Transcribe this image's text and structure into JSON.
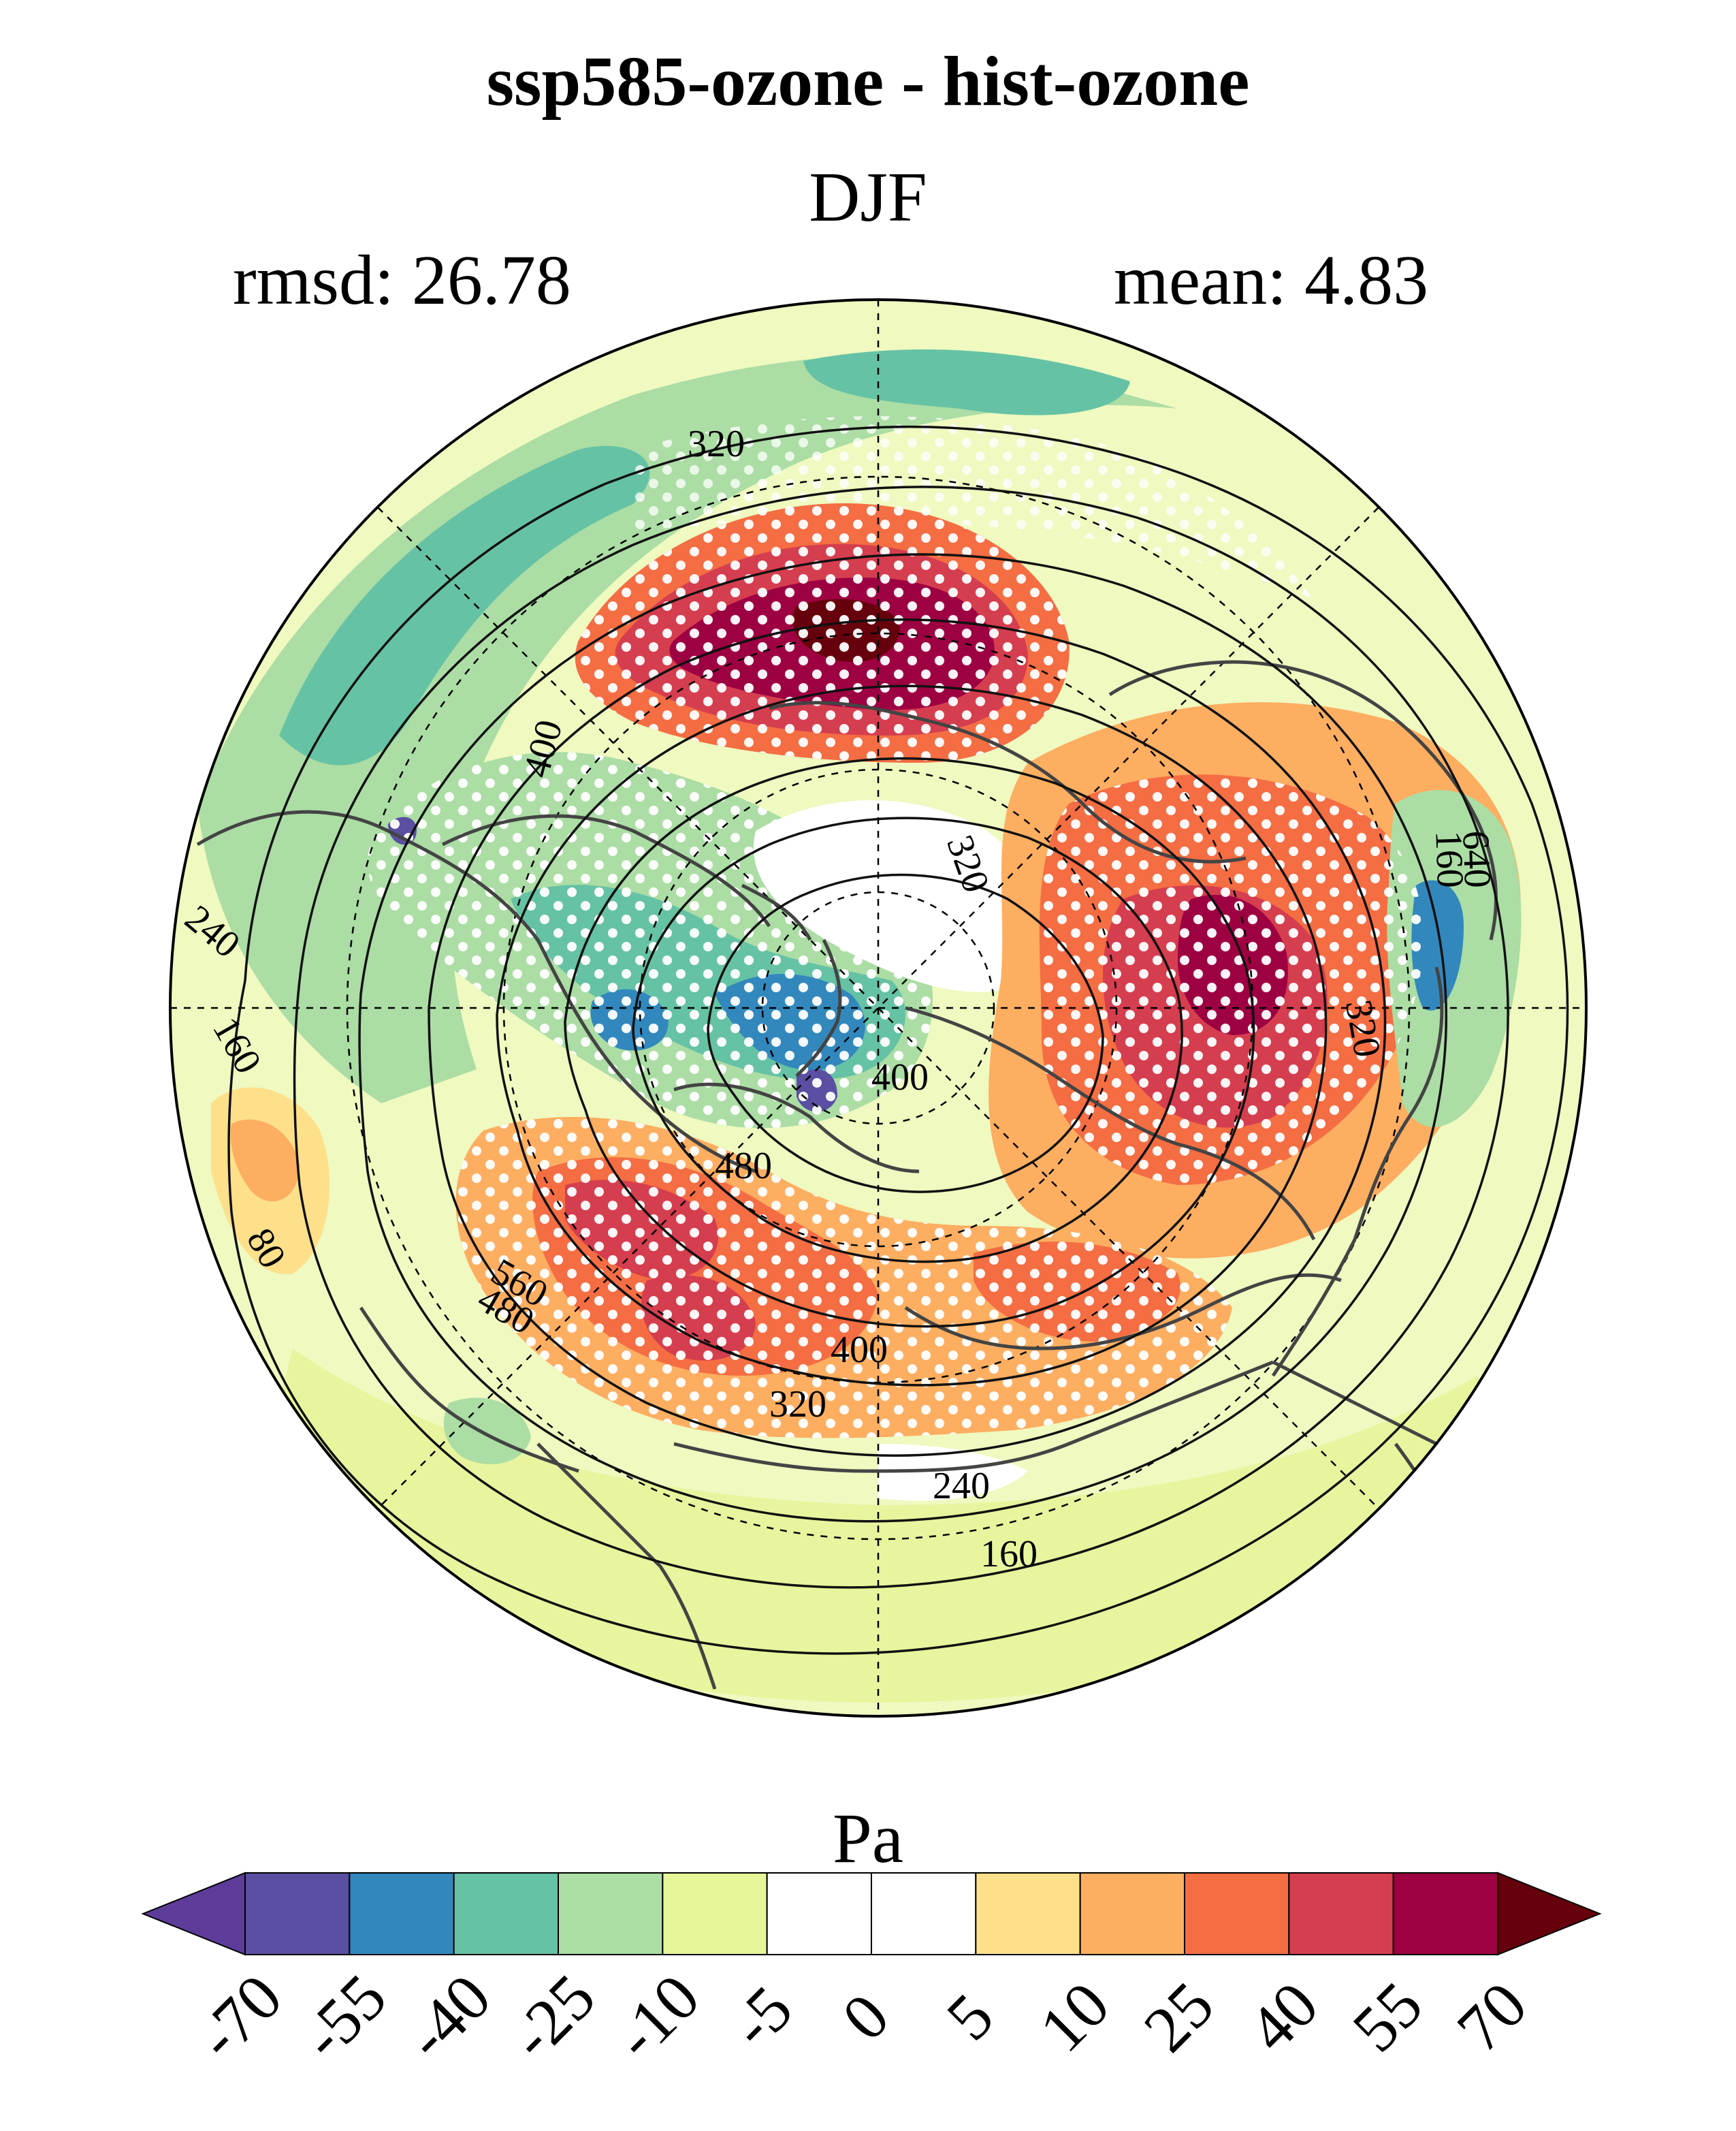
{
  "title": "ssp585-ozone - hist-ozone",
  "season": "DJF",
  "stats": {
    "rmsd": "rmsd: 26.78",
    "mean": "mean: 4.83"
  },
  "colorbar": {
    "unit": "Pa",
    "ticks": [
      "-70",
      "-55",
      "-40",
      "-25",
      "-10",
      "-5",
      "0",
      "5",
      "10",
      "25",
      "40",
      "55",
      "70"
    ],
    "colors": [
      "#5e3c99",
      "#5a4fa2",
      "#3288bd",
      "#66c2a5",
      "#abdda4",
      "#e6f598",
      "#ffffff",
      "#ffffff",
      "#fee08b",
      "#fdae61",
      "#f46d43",
      "#d53e4f",
      "#9e0142",
      "#67000d"
    ]
  },
  "contour_labels": [
    "320",
    "400",
    "320",
    "240",
    "160",
    "80",
    "400",
    "480",
    "560",
    "480",
    "400",
    "320",
    "240",
    "160",
    "320",
    "640",
    "160"
  ],
  "colors": {
    "coastline": "#444444",
    "contour": "#111111",
    "stipple": "#ffffff"
  }
}
